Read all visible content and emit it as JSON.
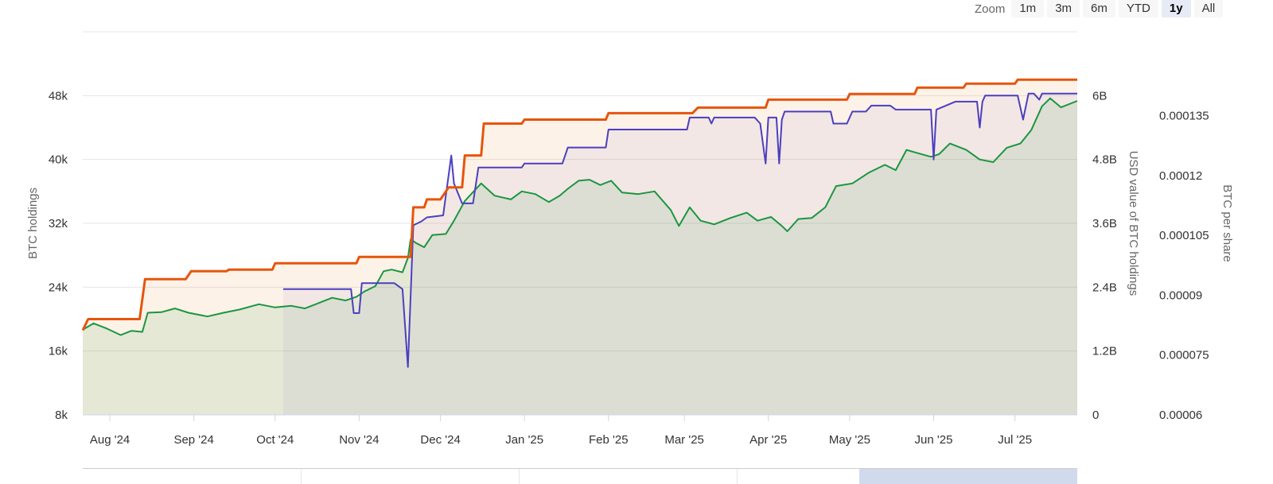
{
  "zoom": {
    "label": "Zoom",
    "buttons": [
      {
        "label": "1m",
        "active": false
      },
      {
        "label": "3m",
        "active": false
      },
      {
        "label": "6m",
        "active": false
      },
      {
        "label": "YTD",
        "active": false
      },
      {
        "label": "1y",
        "active": true
      },
      {
        "label": "All",
        "active": false
      }
    ]
  },
  "chart_data": {
    "type": "line",
    "grid": true,
    "axes": {
      "x": {
        "range": [
          "2024-07-22",
          "2025-07-24"
        ],
        "ticks": [
          {
            "label": "Aug '24",
            "date": "2024-08-01"
          },
          {
            "label": "Sep '24",
            "date": "2024-09-01"
          },
          {
            "label": "Oct '24",
            "date": "2024-10-01"
          },
          {
            "label": "Nov '24",
            "date": "2024-11-01"
          },
          {
            "label": "Dec '24",
            "date": "2024-12-01"
          },
          {
            "label": "Jan '25",
            "date": "2025-01-01"
          },
          {
            "label": "Feb '25",
            "date": "2025-02-01"
          },
          {
            "label": "Mar '25",
            "date": "2025-03-01"
          },
          {
            "label": "Apr '25",
            "date": "2025-04-01"
          },
          {
            "label": "May '25",
            "date": "2025-05-01"
          },
          {
            "label": "Jun '25",
            "date": "2025-06-01"
          },
          {
            "label": "Jul '25",
            "date": "2025-07-01"
          }
        ]
      },
      "y_left": {
        "label": "BTC holdings",
        "range": [
          8000,
          56000
        ],
        "ticks": [
          {
            "v": 8000,
            "label": "8k"
          },
          {
            "v": 16000,
            "label": "16k"
          },
          {
            "v": 24000,
            "label": "24k"
          },
          {
            "v": 32000,
            "label": "32k"
          },
          {
            "v": 40000,
            "label": "40k"
          },
          {
            "v": 48000,
            "label": "48k"
          }
        ]
      },
      "y_usd": {
        "label": "USD value of BTC holdings",
        "range": [
          0,
          7200000000
        ],
        "ticks": [
          {
            "v": 0,
            "label": "0"
          },
          {
            "v": 1200000000,
            "label": "1.2B"
          },
          {
            "v": 2400000000,
            "label": "2.4B"
          },
          {
            "v": 3600000000,
            "label": "3.6B"
          },
          {
            "v": 4800000000,
            "label": "4.8B"
          },
          {
            "v": 6000000000,
            "label": "6B"
          }
        ]
      },
      "y_share": {
        "label": "BTC per share",
        "range": [
          6e-05,
          0.000156
        ],
        "ticks": [
          {
            "v": 6e-05,
            "label": "0.00006"
          },
          {
            "v": 7.5e-05,
            "label": "0.000075"
          },
          {
            "v": 9e-05,
            "label": "0.00009"
          },
          {
            "v": 0.000105,
            "label": "0.000105"
          },
          {
            "v": 0.00012,
            "label": "0.00012"
          },
          {
            "v": 0.000135,
            "label": "0.000135"
          }
        ]
      }
    },
    "series": [
      {
        "axis": "y_usd",
        "color": "#1a9641",
        "points": [
          [
            "2024-07-22",
            1600000000.0
          ],
          [
            "2024-07-26",
            1720000000.0
          ],
          [
            "2024-07-31",
            1620000000.0
          ],
          [
            "2024-08-05",
            1500000000.0
          ],
          [
            "2024-08-09",
            1580000000.0
          ],
          [
            "2024-08-13",
            1560000000.0
          ],
          [
            "2024-08-15",
            1920000000.0
          ],
          [
            "2024-08-20",
            1930000000.0
          ],
          [
            "2024-08-25",
            2000000000.0
          ],
          [
            "2024-08-30",
            1920000000.0
          ],
          [
            "2024-09-06",
            1850000000.0
          ],
          [
            "2024-09-12",
            1920000000.0
          ],
          [
            "2024-09-18",
            1980000000.0
          ],
          [
            "2024-09-25",
            2080000000.0
          ],
          [
            "2024-10-01",
            2020000000.0
          ],
          [
            "2024-10-07",
            2050000000.0
          ],
          [
            "2024-10-12",
            2000000000.0
          ],
          [
            "2024-10-18",
            2120000000.0
          ],
          [
            "2024-10-22",
            2200000000.0
          ],
          [
            "2024-10-27",
            2150000000.0
          ],
          [
            "2024-10-31",
            2220000000.0
          ],
          [
            "2024-11-03",
            2320000000.0
          ],
          [
            "2024-11-07",
            2420000000.0
          ],
          [
            "2024-11-10",
            2700000000.0
          ],
          [
            "2024-11-13",
            2730000000.0
          ],
          [
            "2024-11-17",
            2680000000.0
          ],
          [
            "2024-11-19",
            2950000000.0
          ],
          [
            "2024-11-20",
            3300000000.0
          ],
          [
            "2024-11-22",
            3230000000.0
          ],
          [
            "2024-11-25",
            3150000000.0
          ],
          [
            "2024-11-28",
            3380000000.0
          ],
          [
            "2024-12-03",
            3400000000.0
          ],
          [
            "2024-12-06",
            3650000000.0
          ],
          [
            "2024-12-10",
            4020000000.0
          ],
          [
            "2024-12-16",
            4350000000.0
          ],
          [
            "2024-12-21",
            4120000000.0
          ],
          [
            "2024-12-27",
            4050000000.0
          ],
          [
            "2024-12-31",
            4200000000.0
          ],
          [
            "2025-01-05",
            4150000000.0
          ],
          [
            "2025-01-10",
            4000000000.0
          ],
          [
            "2025-01-14",
            4120000000.0
          ],
          [
            "2025-01-17",
            4250000000.0
          ],
          [
            "2025-01-21",
            4400000000.0
          ],
          [
            "2025-01-25",
            4420000000.0
          ],
          [
            "2025-01-29",
            4320000000.0
          ],
          [
            "2025-02-02",
            4400000000.0
          ],
          [
            "2025-02-06",
            4180000000.0
          ],
          [
            "2025-02-12",
            4150000000.0
          ],
          [
            "2025-02-18",
            4200000000.0
          ],
          [
            "2025-02-24",
            3850000000.0
          ],
          [
            "2025-02-27",
            3550000000.0
          ],
          [
            "2025-03-03",
            3900000000.0
          ],
          [
            "2025-03-07",
            3650000000.0
          ],
          [
            "2025-03-12",
            3580000000.0
          ],
          [
            "2025-03-18",
            3700000000.0
          ],
          [
            "2025-03-24",
            3800000000.0
          ],
          [
            "2025-03-28",
            3650000000.0
          ],
          [
            "2025-04-02",
            3720000000.0
          ],
          [
            "2025-04-06",
            3550000000.0
          ],
          [
            "2025-04-08",
            3450000000.0
          ],
          [
            "2025-04-12",
            3680000000.0
          ],
          [
            "2025-04-17",
            3700000000.0
          ],
          [
            "2025-04-22",
            3900000000.0
          ],
          [
            "2025-04-26",
            4300000000.0
          ],
          [
            "2025-05-02",
            4350000000.0
          ],
          [
            "2025-05-08",
            4550000000.0
          ],
          [
            "2025-05-14",
            4700000000.0
          ],
          [
            "2025-05-18",
            4600000000.0
          ],
          [
            "2025-05-22",
            4980000000.0
          ],
          [
            "2025-05-26",
            4920000000.0
          ],
          [
            "2025-05-31",
            4850000000.0
          ],
          [
            "2025-06-03",
            4900000000.0
          ],
          [
            "2025-06-07",
            5100000000.0
          ],
          [
            "2025-06-13",
            4980000000.0
          ],
          [
            "2025-06-18",
            4800000000.0
          ],
          [
            "2025-06-23",
            4750000000.0
          ],
          [
            "2025-06-28",
            5020000000.0
          ],
          [
            "2025-07-03",
            5100000000.0
          ],
          [
            "2025-07-07",
            5350000000.0
          ],
          [
            "2025-07-11",
            5800000000.0
          ],
          [
            "2025-07-14",
            5950000000.0
          ],
          [
            "2025-07-18",
            5780000000.0
          ],
          [
            "2025-07-24",
            5900000000.0
          ]
        ]
      },
      {
        "axis": "y_left",
        "color": "#e6550d",
        "points": [
          [
            "2024-07-22",
            18600
          ],
          [
            "2024-07-24",
            20000
          ],
          [
            "2024-08-12",
            20000
          ],
          [
            "2024-08-14",
            25000
          ],
          [
            "2024-08-29",
            25000
          ],
          [
            "2024-08-31",
            26000
          ],
          [
            "2024-09-13",
            26000
          ],
          [
            "2024-09-14",
            26200
          ],
          [
            "2024-09-30",
            26200
          ],
          [
            "2024-10-01",
            27000
          ],
          [
            "2024-10-31",
            27000
          ],
          [
            "2024-11-01",
            27800
          ],
          [
            "2024-11-20",
            27800
          ],
          [
            "2024-11-21",
            34000
          ],
          [
            "2024-11-25",
            34000
          ],
          [
            "2024-11-26",
            35000
          ],
          [
            "2024-12-01",
            35000
          ],
          [
            "2024-12-04",
            36500
          ],
          [
            "2024-12-09",
            36500
          ],
          [
            "2024-12-10",
            40500
          ],
          [
            "2024-12-16",
            40500
          ],
          [
            "2024-12-17",
            44500
          ],
          [
            "2024-12-31",
            44500
          ],
          [
            "2025-01-01",
            45000
          ],
          [
            "2025-01-31",
            45000
          ],
          [
            "2025-02-01",
            45800
          ],
          [
            "2025-03-04",
            45800
          ],
          [
            "2025-03-06",
            46500
          ],
          [
            "2025-03-31",
            46500
          ],
          [
            "2025-04-01",
            47500
          ],
          [
            "2025-04-30",
            47500
          ],
          [
            "2025-05-01",
            48200
          ],
          [
            "2025-05-25",
            48200
          ],
          [
            "2025-05-26",
            49000
          ],
          [
            "2025-06-12",
            49000
          ],
          [
            "2025-06-13",
            49500
          ],
          [
            "2025-07-01",
            49500
          ],
          [
            "2025-07-02",
            50000
          ],
          [
            "2025-07-24",
            50000
          ]
        ]
      },
      {
        "axis": "y_share",
        "color": "#4c3fbf",
        "points": [
          [
            "2024-10-04",
            9.15e-05
          ],
          [
            "2024-10-29",
            9.15e-05
          ],
          [
            "2024-10-30",
            8.55e-05
          ],
          [
            "2024-11-01",
            8.55e-05
          ],
          [
            "2024-11-02",
            9.3e-05
          ],
          [
            "2024-11-14",
            9.3e-05
          ],
          [
            "2024-11-17",
            9.15e-05
          ],
          [
            "2024-11-19",
            7.2e-05
          ],
          [
            "2024-11-21",
            0.0001075
          ],
          [
            "2024-11-24",
            0.0001085
          ],
          [
            "2024-11-26",
            0.0001095
          ],
          [
            "2024-12-02",
            0.00011
          ],
          [
            "2024-12-05",
            0.000125
          ],
          [
            "2024-12-06",
            0.000118
          ],
          [
            "2024-12-09",
            0.000113
          ],
          [
            "2024-12-13",
            0.000113
          ],
          [
            "2024-12-15",
            0.000122
          ],
          [
            "2024-12-31",
            0.000122
          ],
          [
            "2025-01-01",
            0.000123
          ],
          [
            "2025-01-15",
            0.000123
          ],
          [
            "2025-01-17",
            0.000127
          ],
          [
            "2025-01-31",
            0.000127
          ],
          [
            "2025-02-01",
            0.0001315
          ],
          [
            "2025-03-02",
            0.0001315
          ],
          [
            "2025-03-03",
            0.0001345
          ],
          [
            "2025-03-10",
            0.0001345
          ],
          [
            "2025-03-11",
            0.000133
          ],
          [
            "2025-03-12",
            0.0001345
          ],
          [
            "2025-03-27",
            0.0001345
          ],
          [
            "2025-03-29",
            0.000133
          ],
          [
            "2025-03-31",
            0.000123
          ],
          [
            "2025-04-01",
            0.0001345
          ],
          [
            "2025-04-04",
            0.0001345
          ],
          [
            "2025-04-05",
            0.000123
          ],
          [
            "2025-04-06",
            0.000134
          ],
          [
            "2025-04-07",
            0.000136
          ],
          [
            "2025-04-24",
            0.000136
          ],
          [
            "2025-04-25",
            0.000133
          ],
          [
            "2025-04-30",
            0.000133
          ],
          [
            "2025-05-02",
            0.000136
          ],
          [
            "2025-05-07",
            0.000136
          ],
          [
            "2025-05-09",
            0.0001375
          ],
          [
            "2025-05-16",
            0.0001375
          ],
          [
            "2025-05-18",
            0.0001365
          ],
          [
            "2025-05-31",
            0.0001365
          ],
          [
            "2025-06-01",
            0.000124
          ],
          [
            "2025-06-02",
            0.0001365
          ],
          [
            "2025-06-09",
            0.0001385
          ],
          [
            "2025-06-17",
            0.0001385
          ],
          [
            "2025-06-18",
            0.000132
          ],
          [
            "2025-06-19",
            0.0001385
          ],
          [
            "2025-06-20",
            0.00014
          ],
          [
            "2025-07-02",
            0.00014
          ],
          [
            "2025-07-04",
            0.000134
          ],
          [
            "2025-07-06",
            0.0001405
          ],
          [
            "2025-07-08",
            0.0001405
          ],
          [
            "2025-07-10",
            0.000139
          ],
          [
            "2025-07-11",
            0.0001405
          ],
          [
            "2025-07-24",
            0.0001405
          ]
        ]
      }
    ]
  }
}
